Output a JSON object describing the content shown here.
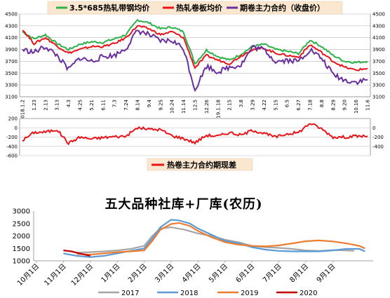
{
  "chart_data": [
    {
      "type": "line",
      "title": "",
      "legend": {
        "placement": "top"
      },
      "x": [
        "2018.1.2",
        "1.23",
        "2.13",
        "3.13",
        "4.3",
        "4.25",
        "5.21",
        "6.11",
        "7.3",
        "7.24",
        "8.14",
        "9.4",
        "9.25",
        "10.24",
        "11.14",
        "12.5",
        "12.26",
        "2019.1.18",
        "2.15",
        "3.8",
        "3.29",
        "4.22",
        "5.15",
        "6.5",
        "6.27",
        "7.18",
        "8.8",
        "8.29",
        "9.20",
        "10.16",
        "11.6"
      ],
      "ylim": [
        3100,
        4500
      ],
      "yticks": [
        3100,
        3300,
        3500,
        3700,
        3900,
        4100,
        4300,
        4500
      ],
      "series": [
        {
          "name": "3.5*685热轧带钢均价",
          "color": "#2db24a",
          "values": [
            4200,
            4080,
            4150,
            4000,
            3900,
            3990,
            4030,
            4020,
            4080,
            4150,
            4400,
            4350,
            4250,
            4280,
            4200,
            3660,
            3890,
            3780,
            3720,
            3820,
            3950,
            3990,
            3900,
            3870,
            3830,
            4060,
            3950,
            3800,
            3700,
            3680,
            3700
          ]
        },
        {
          "name": "热轧卷板均价",
          "color": "#e8151b",
          "values": [
            4240,
            4000,
            4100,
            3960,
            3840,
            3900,
            3950,
            3950,
            4000,
            4100,
            4300,
            4250,
            4150,
            4200,
            4100,
            3590,
            3800,
            3720,
            3660,
            3790,
            3900,
            3920,
            3840,
            3800,
            3770,
            3980,
            3850,
            3700,
            3600,
            3550,
            3580
          ]
        },
        {
          "name": "期卷主力合约（收盘价）",
          "color": "#6a2f9e",
          "values": [
            3900,
            3850,
            3950,
            3800,
            3560,
            3760,
            3700,
            3780,
            3800,
            3920,
            4220,
            4150,
            4040,
            4050,
            3920,
            3220,
            3620,
            3520,
            3600,
            3640,
            3940,
            3900,
            3700,
            3720,
            3700,
            3900,
            3750,
            3480,
            3380,
            3350,
            3390
          ]
        }
      ]
    },
    {
      "type": "line",
      "title": "",
      "legend": {
        "placement": "bottom"
      },
      "ylim": [
        -600,
        200
      ],
      "yticks_left": [
        200,
        0,
        -200,
        -400,
        -600
      ],
      "yticks_right": [
        0,
        -200,
        -400
      ],
      "series": [
        {
          "name": "热卷主力合约期现差",
          "color": "#e8151b",
          "values": [
            -270,
            -100,
            -90,
            -40,
            -330,
            -200,
            -240,
            -210,
            -190,
            -180,
            0,
            -30,
            -40,
            -170,
            -230,
            -320,
            -160,
            -180,
            -100,
            -160,
            -50,
            -120,
            -200,
            -130,
            -100,
            100,
            -20,
            -200,
            -200,
            -180,
            -180
          ]
        }
      ]
    },
    {
      "type": "line",
      "title": "五大品种社库+厂库(农历)",
      "legend": {
        "placement": "bottom"
      },
      "ylim": [
        1000,
        3000
      ],
      "yticks": [
        1000,
        1500,
        2000,
        2500,
        3000
      ],
      "categories": [
        "10月1日",
        "11月1日",
        "12月1日",
        "1月1日",
        "2月1日",
        "3月1日",
        "4月1日",
        "5月1日",
        "6月1日",
        "7月1日",
        "8月1日",
        "9月1日"
      ],
      "series": [
        {
          "name": "2017",
          "color": "#a6a6a6",
          "points": [
            [
              1.5,
              1330
            ],
            [
              2,
              1350
            ],
            [
              2.5,
              1380
            ],
            [
              3,
              1420
            ],
            [
              3.5,
              1480
            ],
            [
              4,
              1600
            ],
            [
              4.3,
              2000
            ],
            [
              4.6,
              2300
            ],
            [
              5,
              2350
            ],
            [
              5.5,
              2250
            ],
            [
              6,
              2100
            ],
            [
              6.5,
              2000
            ],
            [
              7,
              1850
            ],
            [
              7.5,
              1750
            ],
            [
              8,
              1600
            ],
            [
              8.5,
              1550
            ],
            [
              9,
              1520
            ],
            [
              9.5,
              1480
            ],
            [
              10,
              1420
            ],
            [
              10.5,
              1400
            ],
            [
              11,
              1430
            ],
            [
              11.5,
              1420
            ],
            [
              11.8,
              1400
            ]
          ]
        },
        {
          "name": "2018",
          "color": "#5b9bd5",
          "points": [
            [
              1,
              1300
            ],
            [
              1.5,
              1200
            ],
            [
              2,
              1150
            ],
            [
              2.5,
              1200
            ],
            [
              3,
              1300
            ],
            [
              3.5,
              1400
            ],
            [
              4,
              1500
            ],
            [
              4.3,
              1900
            ],
            [
              4.6,
              2350
            ],
            [
              5,
              2650
            ],
            [
              5.3,
              2620
            ],
            [
              5.7,
              2500
            ],
            [
              6,
              2300
            ],
            [
              6.5,
              2050
            ],
            [
              7,
              1800
            ],
            [
              7.5,
              1700
            ],
            [
              8,
              1550
            ],
            [
              8.5,
              1450
            ],
            [
              9,
              1400
            ],
            [
              9.5,
              1380
            ],
            [
              10,
              1380
            ],
            [
              10.5,
              1380
            ],
            [
              11,
              1420
            ],
            [
              11.5,
              1480
            ],
            [
              12,
              1480
            ],
            [
              12.2,
              1380
            ]
          ]
        },
        {
          "name": "2019",
          "color": "#ed7d31",
          "points": [
            [
              1.5,
              1280
            ],
            [
              2,
              1250
            ],
            [
              2.5,
              1300
            ],
            [
              3,
              1350
            ],
            [
              3.5,
              1380
            ],
            [
              4,
              1420
            ],
            [
              4.3,
              1800
            ],
            [
              4.6,
              2250
            ],
            [
              5,
              2480
            ],
            [
              5.3,
              2520
            ],
            [
              5.7,
              2400
            ],
            [
              6,
              2200
            ],
            [
              6.5,
              1950
            ],
            [
              7,
              1750
            ],
            [
              7.5,
              1650
            ],
            [
              8,
              1600
            ],
            [
              8.5,
              1580
            ],
            [
              9,
              1620
            ],
            [
              9.5,
              1700
            ],
            [
              10,
              1790
            ],
            [
              10.5,
              1820
            ],
            [
              11,
              1780
            ],
            [
              11.5,
              1700
            ],
            [
              12,
              1600
            ],
            [
              12.2,
              1500
            ]
          ]
        },
        {
          "name": "2020",
          "color": "#c00000",
          "points": [
            [
              1,
              1420
            ],
            [
              1.3,
              1380
            ],
            [
              1.6,
              1300
            ],
            [
              2,
              1200
            ]
          ]
        }
      ]
    }
  ]
}
